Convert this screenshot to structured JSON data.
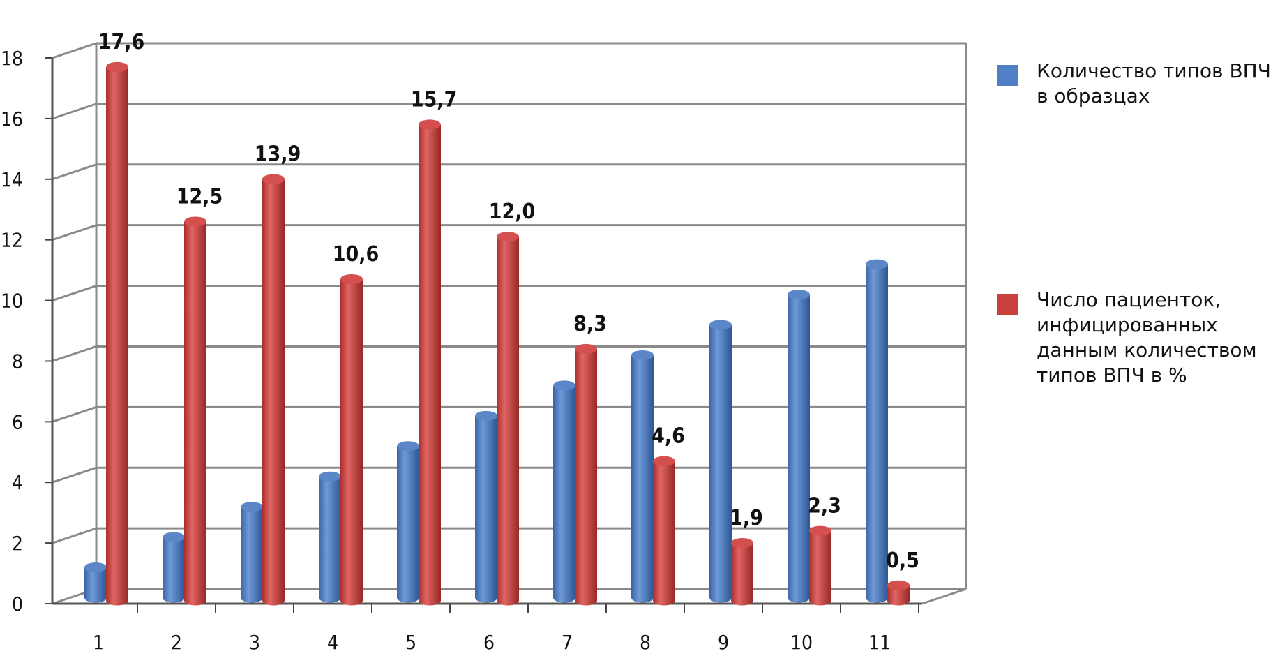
{
  "chart_data": {
    "type": "bar",
    "categories": [
      "1",
      "2",
      "3",
      "4",
      "5",
      "6",
      "7",
      "8",
      "9",
      "10",
      "11"
    ],
    "series": [
      {
        "name": "Количество типов ВПЧ в образцах",
        "color": "#4f7fc4",
        "values": [
          1,
          2,
          3,
          4,
          5,
          6,
          7,
          8,
          9,
          10,
          11
        ]
      },
      {
        "name": "Число пациенток, инфицированных данным количеством типов ВПЧ в %",
        "color": "#c8413f",
        "values": [
          17.6,
          12.5,
          13.9,
          10.6,
          15.7,
          12.0,
          8.3,
          4.6,
          1.9,
          2.3,
          0.5
        ],
        "labels": [
          "17,6",
          "12,5",
          "13,9",
          "10,6",
          "15,7",
          "12,0",
          "8,3",
          "4,6",
          "1,9",
          "2,3",
          "0,5"
        ]
      }
    ],
    "yticks": [
      "0",
      "2",
      "4",
      "6",
      "8",
      "10",
      "12",
      "14",
      "16",
      "18"
    ],
    "ylim": [
      0,
      18
    ],
    "grid": true,
    "legend_position": "right",
    "style": "3d-cylinder"
  },
  "legend": {
    "item1": "Количество типов ВПЧ\nв образцах",
    "item2": "Число пациенток,\nинфицированных\nданным количеством\nтипов ВПЧ в %"
  }
}
